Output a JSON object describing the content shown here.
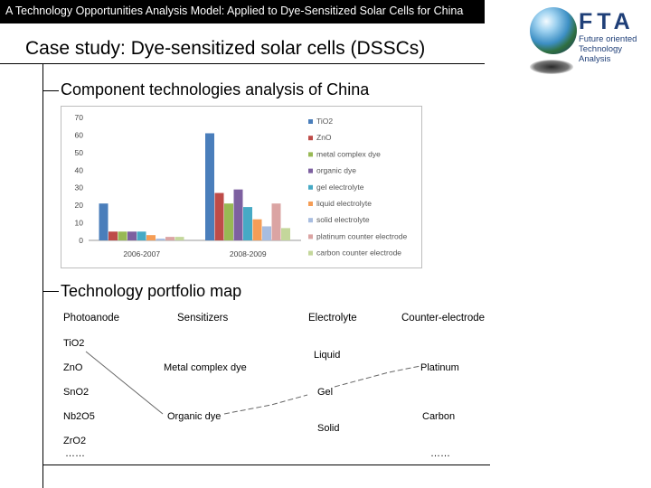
{
  "header": {
    "bar_text": "A Technology Opportunities Analysis Model: Applied to Dye-Sensitized Solar Cells for China",
    "slide_title": "Case study: Dye-sensitized solar cells (DSSCs)"
  },
  "logo": {
    "letters": "FTA",
    "line1": "Future oriented",
    "line2": "Technology",
    "line3": "Analysis"
  },
  "sections": {
    "component_analysis": "Component technologies analysis of China",
    "portfolio_map": "Technology portfolio map"
  },
  "chart_data": {
    "type": "bar",
    "categories": [
      "2006-2007",
      "2008-2009"
    ],
    "ylim": [
      0,
      70
    ],
    "yticks": [
      0,
      10,
      20,
      30,
      40,
      50,
      60,
      70
    ],
    "legend_position": "right",
    "series": [
      {
        "name": "TiO2",
        "color": "#4a7ebb",
        "values": [
          21,
          61
        ]
      },
      {
        "name": "ZnO",
        "color": "#be4b48",
        "values": [
          5,
          27
        ]
      },
      {
        "name": "metal complex dye",
        "color": "#98b954",
        "values": [
          5,
          21
        ]
      },
      {
        "name": "organic dye",
        "color": "#7d60a0",
        "values": [
          5,
          29
        ]
      },
      {
        "name": "gel electrolyte",
        "color": "#46aac5",
        "values": [
          5,
          19
        ]
      },
      {
        "name": "liquid electrolyte",
        "color": "#f59d56",
        "values": [
          3,
          12
        ]
      },
      {
        "name": "solid electrolyte",
        "color": "#a8bde0",
        "values": [
          1,
          8
        ]
      },
      {
        "name": "platinum counter electrode",
        "color": "#dba4a3",
        "values": [
          2,
          21
        ]
      },
      {
        "name": "carbon counter electrode",
        "color": "#c4d79b",
        "values": [
          2,
          7
        ]
      }
    ]
  },
  "portfolio": {
    "headers": [
      "Photoanode",
      "Sensitizers",
      "Electrolyte",
      "Counter-electrode"
    ],
    "photoanode": [
      "TiO2",
      "ZnO",
      "SnO2",
      "Nb2O5",
      "ZrO2",
      "……"
    ],
    "sensitizers": [
      "Metal complex dye",
      "Organic dye"
    ],
    "electrolyte": [
      "Liquid",
      "Gel",
      "Solid"
    ],
    "counter_electrode": [
      "Platinum",
      "Carbon",
      "……"
    ]
  }
}
